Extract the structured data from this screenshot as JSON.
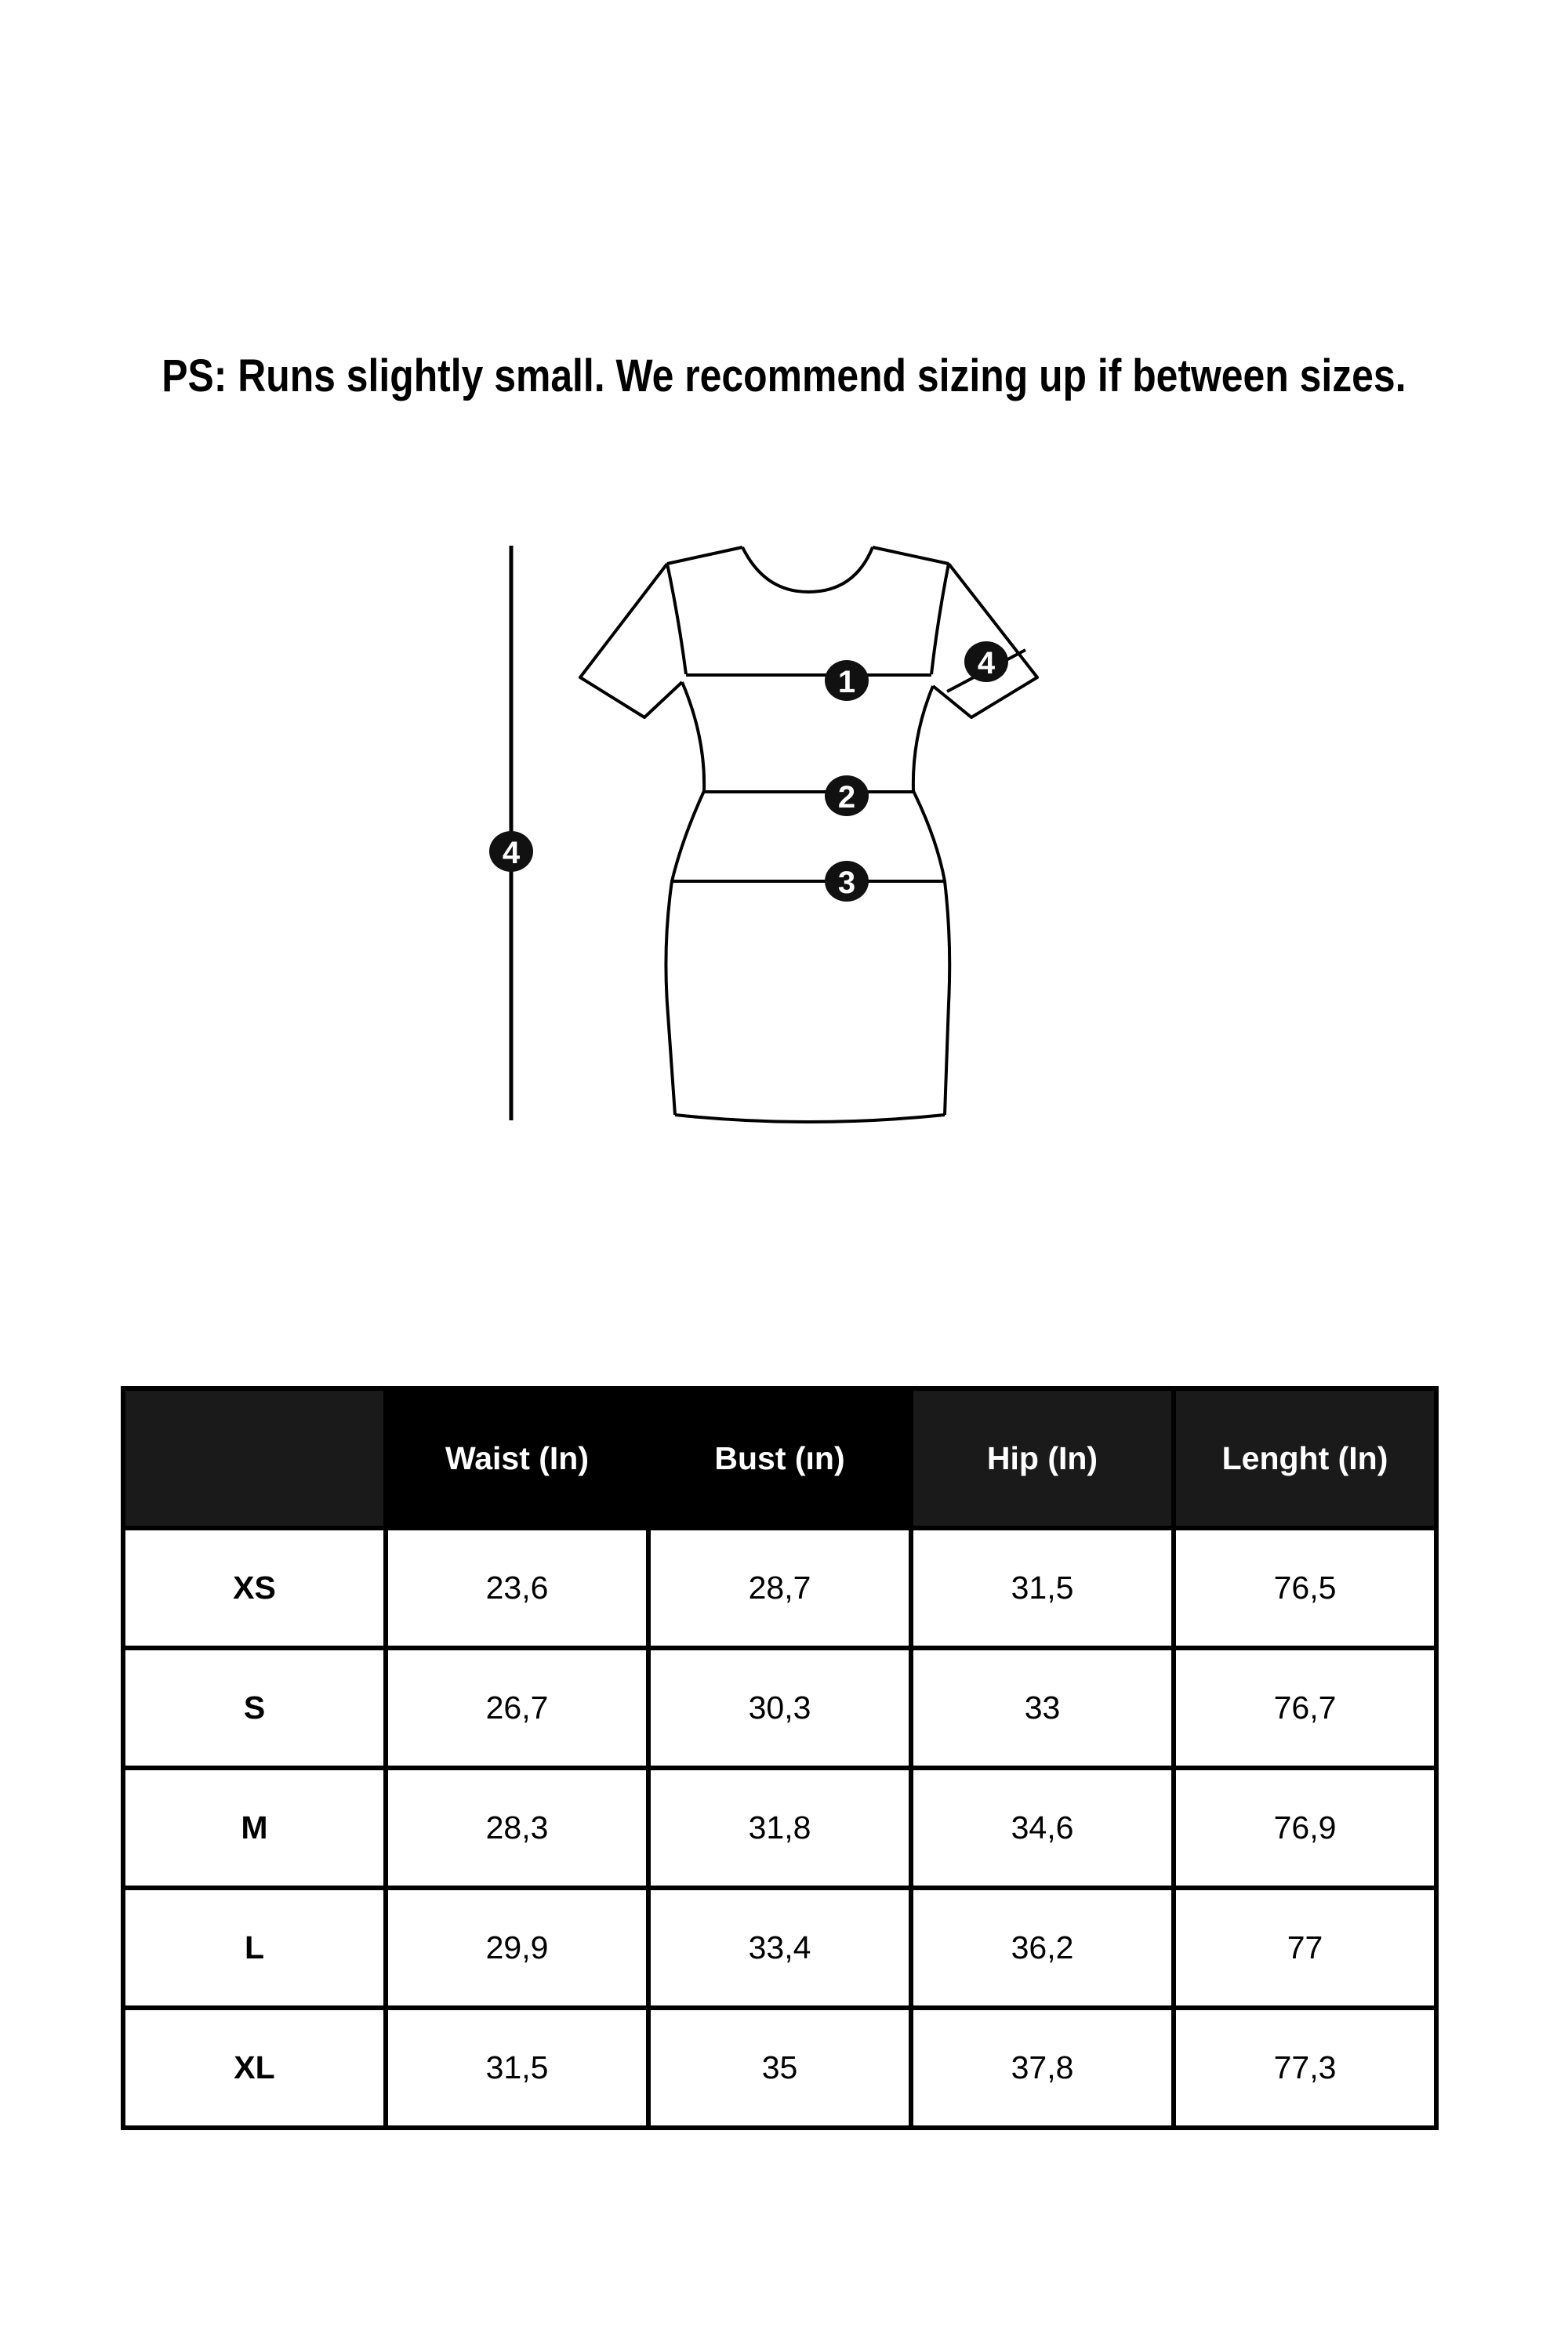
{
  "note": "PS: Runs slightly small. We recommend sizing up if between sizes.",
  "diagram": {
    "markers": [
      "1",
      "2",
      "3",
      "4",
      "4"
    ],
    "line_color": "#000000"
  },
  "table": {
    "headers": [
      "",
      "Waist (In)",
      "Bust (ın)",
      "Hip (In)",
      "Lenght (In)"
    ],
    "header_colors": [
      "#1a1a1a",
      "#000000",
      "#000000",
      "#1a1a1a",
      "#1a1a1a"
    ],
    "rows": [
      {
        "size": "XS",
        "waist": "23,6",
        "bust": "28,7",
        "hip": "31,5",
        "length": "76,5"
      },
      {
        "size": "S",
        "waist": "26,7",
        "bust": "30,3",
        "hip": "33",
        "length": "76,7"
      },
      {
        "size": "M",
        "waist": "28,3",
        "bust": "31,8",
        "hip": "34,6",
        "length": "76,9"
      },
      {
        "size": "L",
        "waist": "29,9",
        "bust": "33,4",
        "hip": "36,2",
        "length": "77"
      },
      {
        "size": "XL",
        "waist": "31,5",
        "bust": "35",
        "hip": "37,8",
        "length": "77,3"
      }
    ]
  }
}
